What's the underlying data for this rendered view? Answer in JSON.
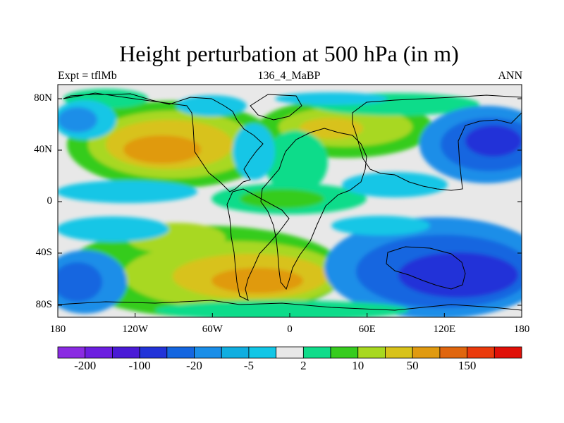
{
  "title": "Height perturbation at 500 hPa (in m)",
  "subtitle_left": "Expt = tflMb",
  "subtitle_center": "136_4_MaBP",
  "subtitle_right": "ANN",
  "lat_ticks": [
    "80N",
    "40N",
    "0",
    "40S",
    "80S"
  ],
  "lon_ticks": [
    "180",
    "120W",
    "60W",
    "0",
    "60E",
    "120E",
    "180"
  ],
  "colorbar": {
    "colors": [
      "#8a2be2",
      "#6c1ee0",
      "#4a1ad6",
      "#2233d8",
      "#1466e0",
      "#1a8ee8",
      "#10aee0",
      "#12c6e6",
      "#e8e8e8",
      "#10dc8a",
      "#36cc1e",
      "#a8d820",
      "#d8c21a",
      "#e09a10",
      "#e0660e",
      "#ea3a0c",
      "#e01008"
    ],
    "labels": [
      "-200",
      "-100",
      "-20",
      "-5",
      "2",
      "10",
      "50",
      "150"
    ]
  },
  "palette": {
    "strong_negative": "#2233d8",
    "negative": "#1466e0",
    "weak_negative": "#1a8ee8",
    "slight_negative": "#12c6e6",
    "neutral": "#e8e8e8",
    "slight_positive": "#10dc8a",
    "positive": "#36cc1e",
    "moderate_positive": "#a8d820",
    "strong_positive": "#d8c21a",
    "max_positive": "#e09a10"
  }
}
